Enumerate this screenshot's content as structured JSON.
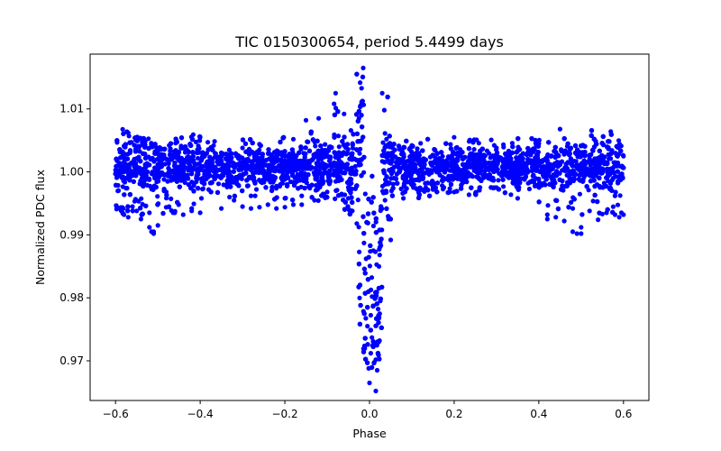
{
  "chart_data": {
    "type": "scatter",
    "title": "TIC 0150300654, period 5.4499 days",
    "xlabel": "Phase",
    "ylabel": "Normalized PDC flux",
    "xlim": [
      -0.66,
      0.66
    ],
    "ylim": [
      0.9637,
      1.0187
    ],
    "xticks": [
      -0.6,
      -0.4,
      -0.2,
      0.0,
      0.2,
      0.4,
      0.6
    ],
    "xtick_labels": [
      "−0.6",
      "−0.4",
      "−0.2",
      "0.0",
      "0.2",
      "0.4",
      "0.6"
    ],
    "yticks": [
      0.97,
      0.98,
      0.99,
      1.0,
      1.01
    ],
    "ytick_labels": [
      "0.97",
      "0.98",
      "0.99",
      "1.00",
      "1.01"
    ],
    "grid": false,
    "marker_color": "#0000ff",
    "series": [
      {
        "name": "",
        "description_points": [
          [
            -0.6,
            1.0003
          ],
          [
            -0.59,
            0.9995
          ],
          [
            -0.58,
            1.0041
          ],
          [
            -0.57,
            1.0062
          ],
          [
            -0.56,
            0.9945
          ],
          [
            -0.55,
            1.0006
          ],
          [
            -0.54,
            0.9997
          ],
          [
            -0.53,
            1.0048
          ],
          [
            -0.52,
            0.9935
          ],
          [
            -0.51,
            0.9905
          ],
          [
            -0.5,
            1.0002
          ],
          [
            -0.48,
            0.9968
          ],
          [
            -0.45,
            1.0031
          ],
          [
            -0.42,
            0.9942
          ],
          [
            -0.4,
            1.0055
          ],
          [
            -0.38,
            0.9972
          ],
          [
            -0.35,
            1.0018
          ],
          [
            -0.32,
            0.9955
          ],
          [
            -0.3,
            1.0038
          ],
          [
            -0.28,
            0.9962
          ],
          [
            -0.26,
            1.0044
          ],
          [
            -0.24,
            0.9948
          ],
          [
            -0.22,
            1.0028
          ],
          [
            -0.2,
            0.9958
          ],
          [
            -0.18,
            1.0052
          ],
          [
            -0.16,
            0.9962
          ],
          [
            -0.15,
            1.0082
          ],
          [
            -0.13,
            0.9955
          ],
          [
            -0.12,
            1.0085
          ],
          [
            -0.1,
            0.9968
          ],
          [
            -0.08,
            1.0125
          ],
          [
            -0.07,
            0.9992
          ],
          [
            -0.06,
            1.0092
          ],
          [
            -0.05,
            0.9958
          ],
          [
            -0.04,
            1.0045
          ],
          [
            -0.03,
            0.9918
          ],
          [
            -0.025,
            1.0085
          ],
          [
            -0.02,
            1.0105
          ],
          [
            -0.015,
            1.0165
          ],
          [
            -0.01,
            0.9965
          ],
          [
            -0.008,
            0.9862
          ],
          [
            -0.005,
            0.9755
          ],
          [
            -0.002,
            0.9688
          ],
          [
            0.0,
            0.9665
          ],
          [
            0.003,
            0.9712
          ],
          [
            0.006,
            0.9802
          ],
          [
            0.009,
            0.9875
          ],
          [
            0.012,
            0.9728
          ],
          [
            0.015,
            0.9652
          ],
          [
            0.018,
            0.9685
          ],
          [
            0.021,
            0.9772
          ],
          [
            0.024,
            0.9868
          ],
          [
            0.027,
            0.9942
          ],
          [
            0.03,
            1.0125
          ],
          [
            0.035,
            1.0098
          ],
          [
            0.04,
            1.0052
          ],
          [
            0.045,
            0.9925
          ],
          [
            0.05,
            0.9892
          ],
          [
            0.06,
            1.0035
          ],
          [
            0.08,
            0.9958
          ],
          [
            0.1,
            1.0042
          ],
          [
            0.15,
            0.9972
          ],
          [
            0.2,
            1.0055
          ],
          [
            0.25,
            0.9965
          ],
          [
            0.3,
            1.0038
          ],
          [
            0.35,
            0.9958
          ],
          [
            0.4,
            1.0045
          ],
          [
            0.42,
            0.9925
          ],
          [
            0.45,
            1.0068
          ],
          [
            0.48,
            0.9942
          ],
          [
            0.5,
            0.9902
          ],
          [
            0.52,
            1.0021
          ],
          [
            0.55,
            0.9933
          ],
          [
            0.57,
            1.0064
          ],
          [
            0.58,
            0.9962
          ],
          [
            0.6,
            1.0025
          ]
        ]
      }
    ]
  }
}
